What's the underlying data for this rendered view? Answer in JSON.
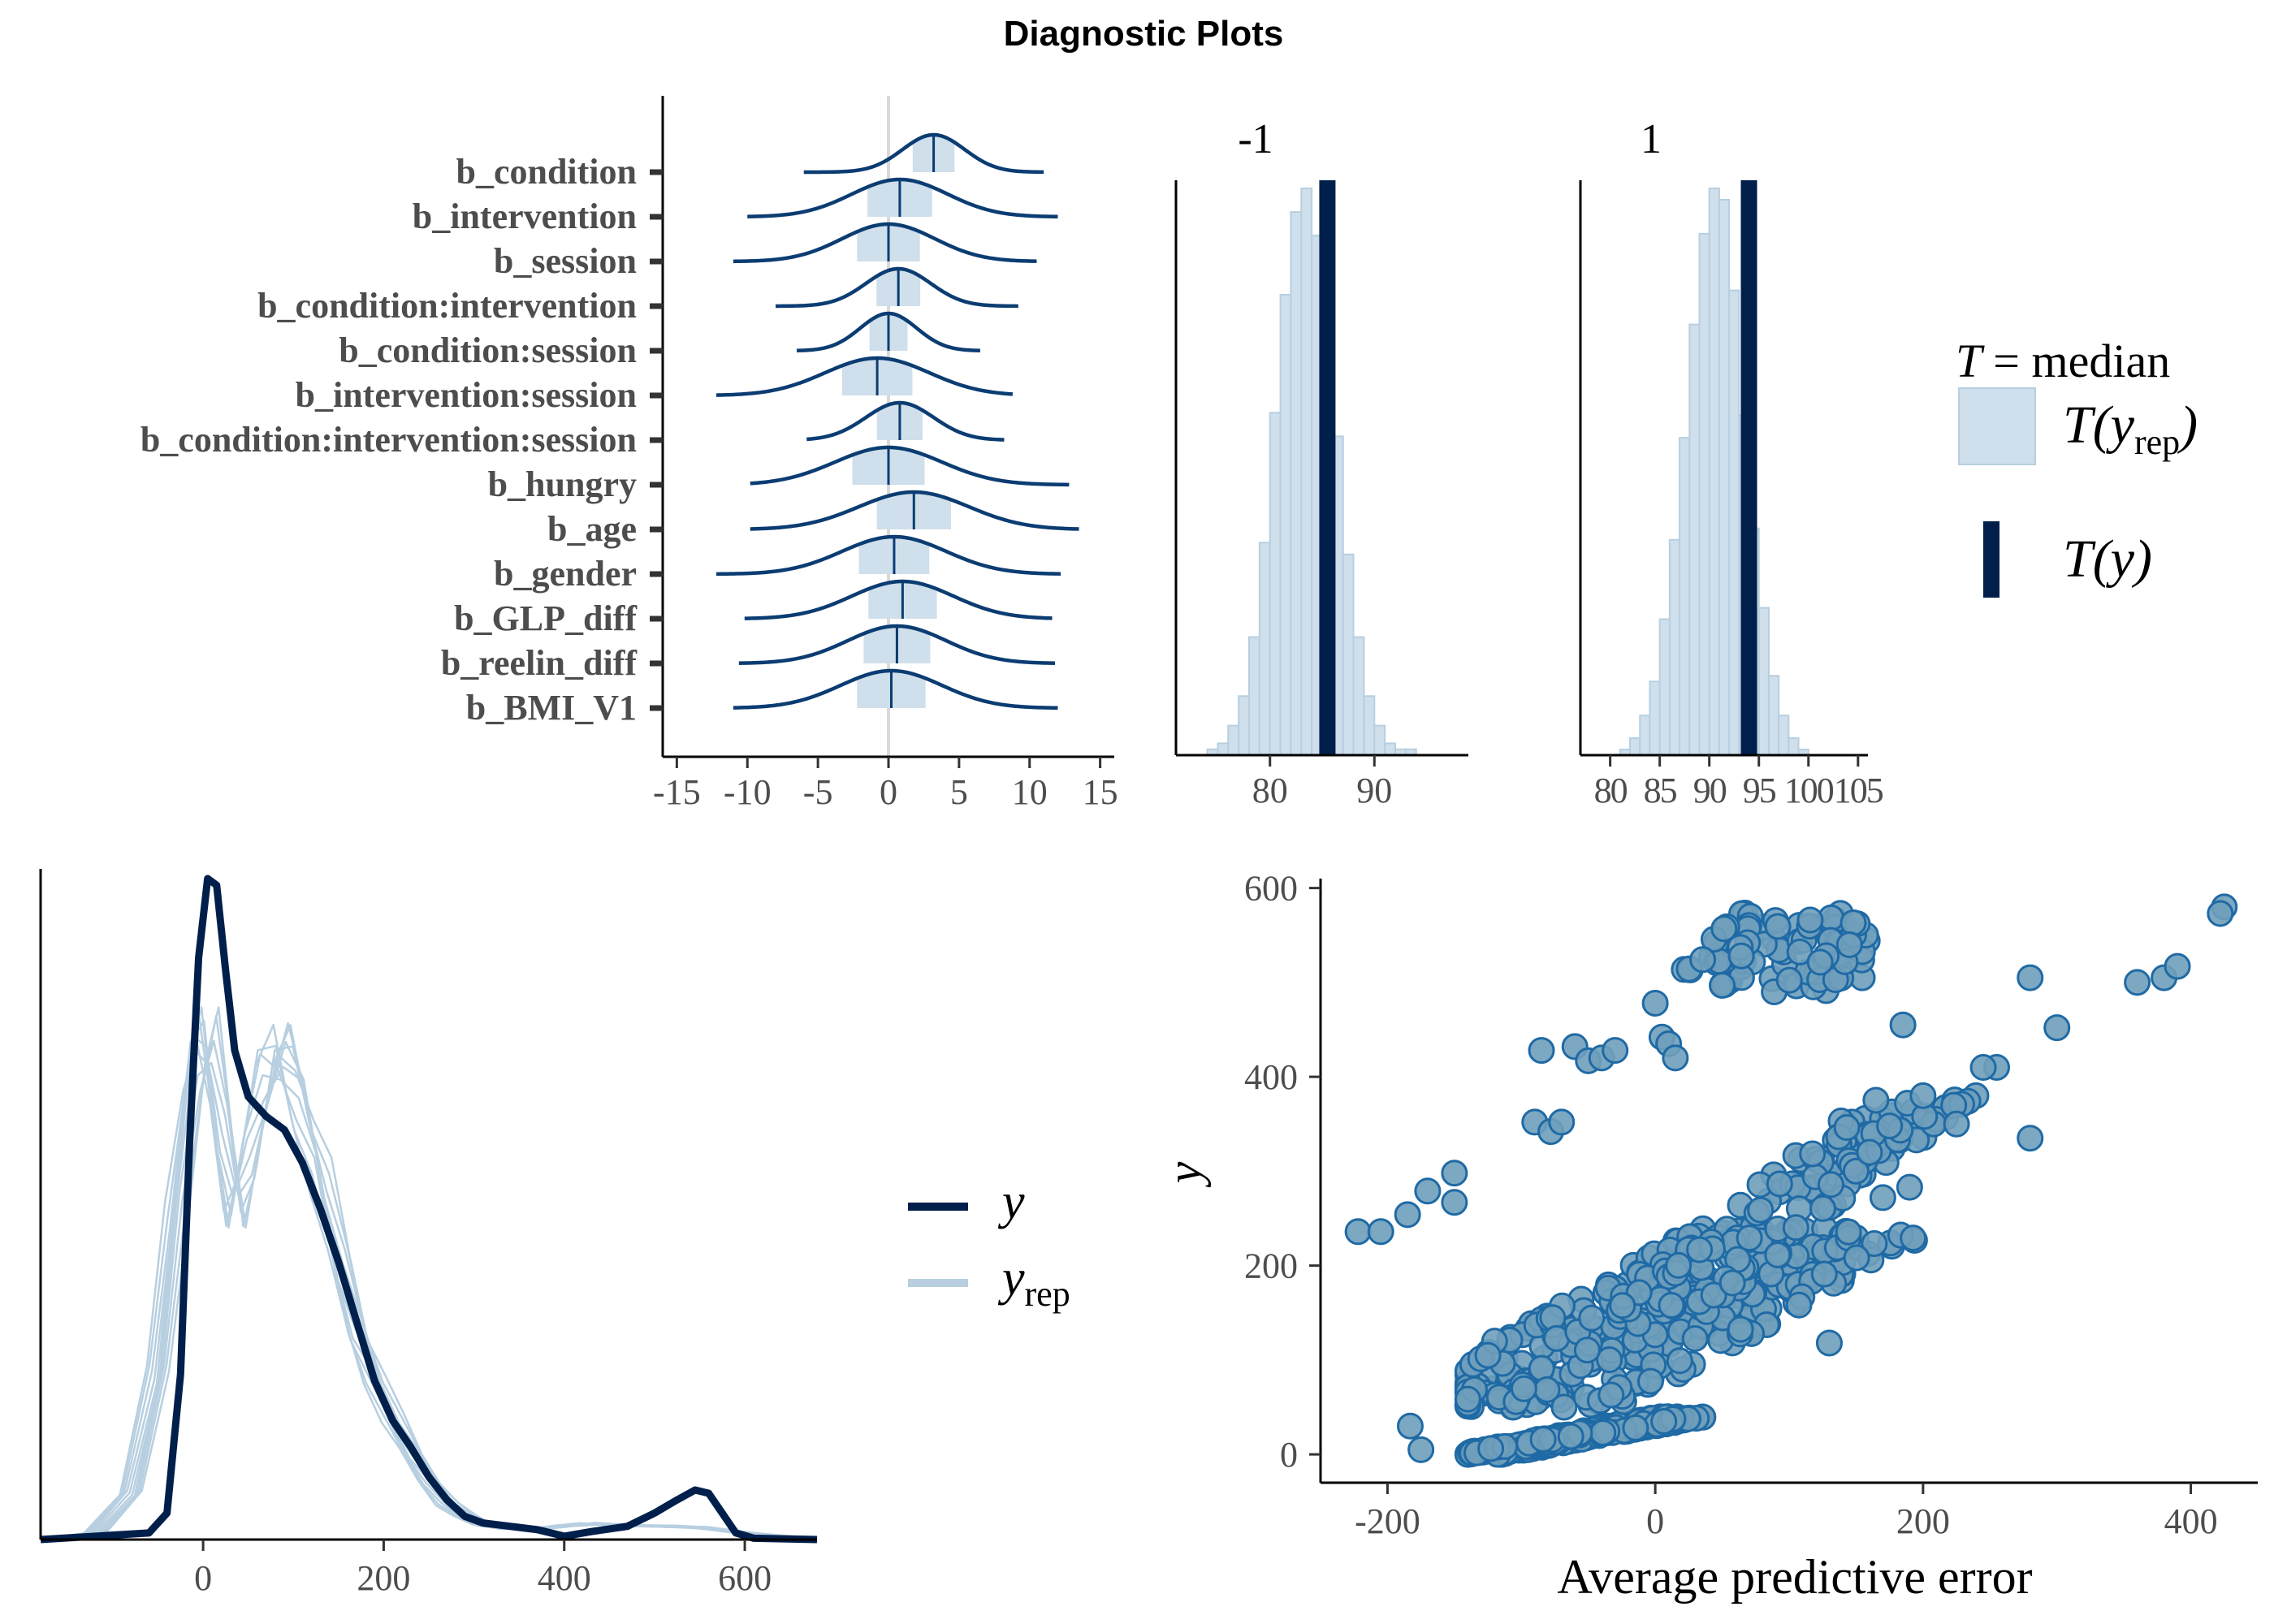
{
  "figure": {
    "title": "Diagnostic Plots"
  },
  "chart_data": [
    {
      "id": "posterior-intervals",
      "type": "ridgeline",
      "xlim": [
        -16,
        16
      ],
      "xticks": [
        -15,
        -10,
        -5,
        0,
        5,
        10,
        15
      ],
      "xtick_labels": [
        "-15",
        "-10",
        "-5",
        "0",
        "5",
        "10",
        "15"
      ],
      "params": [
        {
          "name": "b_condition",
          "mean": 3.2,
          "sd": 2.2,
          "lo": -6.0,
          "hi": 11.0
        },
        {
          "name": "b_intervention",
          "mean": 0.8,
          "sd": 3.4,
          "lo": -10.0,
          "hi": 12.0
        },
        {
          "name": "b_session",
          "mean": 0.0,
          "sd": 3.3,
          "lo": -11.0,
          "hi": 10.5
        },
        {
          "name": "b_condition:intervention",
          "mean": 0.7,
          "sd": 2.3,
          "lo": -8.0,
          "hi": 9.2
        },
        {
          "name": "b_condition:session",
          "mean": 0.0,
          "sd": 2.0,
          "lo": -6.5,
          "hi": 6.5
        },
        {
          "name": "b_intervention:session",
          "mean": -0.8,
          "sd": 3.7,
          "lo": -12.2,
          "hi": 8.8
        },
        {
          "name": "b_condition:intervention:session",
          "mean": 0.8,
          "sd": 2.4,
          "lo": -5.8,
          "hi": 8.2
        },
        {
          "name": "b_hungry",
          "mean": 0.0,
          "sd": 3.8,
          "lo": -9.8,
          "hi": 12.8
        },
        {
          "name": "b_age",
          "mean": 1.8,
          "sd": 3.9,
          "lo": -9.8,
          "hi": 13.5
        },
        {
          "name": "b_gender",
          "mean": 0.4,
          "sd": 3.7,
          "lo": -12.2,
          "hi": 12.2
        },
        {
          "name": "b_GLP_diff",
          "mean": 1.0,
          "sd": 3.6,
          "lo": -10.2,
          "hi": 11.6
        },
        {
          "name": "b_reelin_diff",
          "mean": 0.6,
          "sd": 3.5,
          "lo": -10.6,
          "hi": 11.8
        },
        {
          "name": "b_BMI_V1",
          "mean": 0.2,
          "sd": 3.6,
          "lo": -11.0,
          "hi": 12.0
        }
      ],
      "colors": {
        "line": "#0b3c72",
        "fill": "#cfdfeb",
        "zero": "#d9d9d9"
      }
    },
    {
      "id": "ppc-stat-grouped",
      "type": "histogram",
      "legend": {
        "stat_symbol": "T",
        "stat_text": "= median",
        "yrep_label": "T(y",
        "yrep_sub": "rep",
        "y_label": "T(y)"
      },
      "panels": [
        {
          "facet": "-1",
          "xlim": [
            71,
            99
          ],
          "xticks": [
            80,
            90
          ],
          "xtick_labels": [
            "80",
            "90"
          ],
          "bins_start": 74,
          "bin_width": 1,
          "counts": [
            1,
            2,
            5,
            10,
            20,
            36,
            58,
            78,
            92,
            96,
            88,
            74,
            54,
            34,
            20,
            10,
            5,
            2,
            1,
            1
          ],
          "observed": 85.5
        },
        {
          "facet": "1",
          "xlim": [
            77,
            106
          ],
          "xticks": [
            80,
            85,
            90,
            95,
            100,
            105
          ],
          "xtick_labels": [
            "80",
            "85",
            "90",
            "95",
            "100",
            "105"
          ],
          "bins_start": 81,
          "bin_width": 1,
          "counts": [
            1,
            3,
            7,
            13,
            24,
            38,
            56,
            76,
            92,
            100,
            98,
            82,
            60,
            40,
            26,
            14,
            7,
            3,
            1
          ],
          "observed": 94.0
        }
      ],
      "colors": {
        "bar_fill": "#cfdfeb",
        "bar_stroke": "#b7cfe0",
        "observed": "#011f4b"
      }
    },
    {
      "id": "ppc-density-overlay",
      "type": "line",
      "xlim": [
        -180,
        680
      ],
      "xticks": [
        0,
        200,
        400,
        600
      ],
      "xtick_labels": [
        "0",
        "200",
        "400",
        "600"
      ],
      "y": [
        [
          -200,
          0
        ],
        [
          -60,
          0.01
        ],
        [
          -40,
          0.04
        ],
        [
          -25,
          0.25
        ],
        [
          -15,
          0.6
        ],
        [
          -5,
          0.88
        ],
        [
          5,
          1.0
        ],
        [
          15,
          0.99
        ],
        [
          25,
          0.86
        ],
        [
          35,
          0.74
        ],
        [
          50,
          0.67
        ],
        [
          70,
          0.64
        ],
        [
          90,
          0.62
        ],
        [
          110,
          0.57
        ],
        [
          130,
          0.5
        ],
        [
          150,
          0.42
        ],
        [
          170,
          0.33
        ],
        [
          190,
          0.24
        ],
        [
          210,
          0.18
        ],
        [
          230,
          0.14
        ],
        [
          250,
          0.095
        ],
        [
          270,
          0.06
        ],
        [
          290,
          0.035
        ],
        [
          310,
          0.025
        ],
        [
          340,
          0.02
        ],
        [
          370,
          0.015
        ],
        [
          400,
          0.005
        ],
        [
          430,
          0.012
        ],
        [
          470,
          0.02
        ],
        [
          500,
          0.04
        ],
        [
          525,
          0.06
        ],
        [
          545,
          0.075
        ],
        [
          560,
          0.07
        ],
        [
          575,
          0.04
        ],
        [
          590,
          0.01
        ],
        [
          610,
          0.002
        ],
        [
          680,
          0
        ]
      ],
      "yrep": [
        [
          -200,
          0
        ],
        [
          -120,
          0.01
        ],
        [
          -80,
          0.07
        ],
        [
          -50,
          0.25
        ],
        [
          -30,
          0.5
        ],
        [
          -10,
          0.72
        ],
        [
          5,
          0.76
        ],
        [
          20,
          0.62
        ],
        [
          35,
          0.5
        ],
        [
          50,
          0.58
        ],
        [
          70,
          0.7
        ],
        [
          90,
          0.74
        ],
        [
          110,
          0.66
        ],
        [
          130,
          0.55
        ],
        [
          150,
          0.42
        ],
        [
          170,
          0.32
        ],
        [
          190,
          0.25
        ],
        [
          210,
          0.18
        ],
        [
          230,
          0.13
        ],
        [
          250,
          0.09
        ],
        [
          270,
          0.055
        ],
        [
          290,
          0.035
        ],
        [
          310,
          0.022
        ],
        [
          340,
          0.017
        ],
        [
          370,
          0.016
        ],
        [
          400,
          0.02
        ],
        [
          430,
          0.024
        ],
        [
          470,
          0.022
        ],
        [
          510,
          0.02
        ],
        [
          550,
          0.018
        ],
        [
          590,
          0.012
        ],
        [
          630,
          0.006
        ],
        [
          680,
          0.002
        ]
      ],
      "legend": {
        "y_label": "y",
        "yrep_label": "y",
        "yrep_sub": "rep"
      },
      "colors": {
        "y": "#011f4b",
        "yrep": "#b7cfe0"
      }
    },
    {
      "id": "ppc-error-scatter",
      "type": "scatter",
      "xlim": [
        -250,
        450
      ],
      "ylim": [
        -30,
        610
      ],
      "xticks": [
        -200,
        0,
        200,
        400
      ],
      "xtick_labels": [
        "-200",
        "0",
        "200",
        "400"
      ],
      "yticks": [
        0,
        200,
        400,
        600
      ],
      "ytick_labels": [
        "0",
        "200",
        "400",
        "600"
      ],
      "xlabel": "Average predictive error",
      "ylabel": "y",
      "clusters": [
        {
          "n": 260,
          "x_from": -130,
          "x_to": 20,
          "y_from": 0,
          "y_to": 40,
          "spread": 18
        },
        {
          "n": 340,
          "x_from": -110,
          "x_to": 120,
          "y_from": 50,
          "y_to": 240,
          "slope_x": 1.0,
          "spread": 45
        },
        {
          "n": 150,
          "x_from": 0,
          "x_to": 200,
          "y_from": 150,
          "y_to": 380,
          "spread": 40
        },
        {
          "n": 80,
          "x_from": 20,
          "x_to": 160,
          "y_from": 490,
          "y_to": 575,
          "spread": 0
        }
      ],
      "points": [
        [
          -222,
          236
        ],
        [
          -205,
          236
        ],
        [
          -185,
          254
        ],
        [
          -170,
          279
        ],
        [
          -150,
          298
        ],
        [
          -150,
          267
        ],
        [
          -183,
          30
        ],
        [
          -175,
          5
        ],
        [
          -85,
          428
        ],
        [
          -60,
          432
        ],
        [
          -50,
          417
        ],
        [
          -40,
          420
        ],
        [
          -30,
          428
        ],
        [
          0,
          478
        ],
        [
          5,
          442
        ],
        [
          10,
          435
        ],
        [
          15,
          420
        ],
        [
          -90,
          352
        ],
        [
          -78,
          342
        ],
        [
          -70,
          352
        ],
        [
          255,
          410
        ],
        [
          280,
          335
        ],
        [
          300,
          452
        ],
        [
          280,
          505
        ],
        [
          360,
          500
        ],
        [
          380,
          505
        ],
        [
          390,
          517
        ],
        [
          425,
          580
        ],
        [
          422,
          573
        ],
        [
          200,
          380
        ],
        [
          225,
          350
        ],
        [
          245,
          410
        ],
        [
          150,
          300
        ],
        [
          160,
          320
        ],
        [
          175,
          348
        ],
        [
          185,
          455
        ],
        [
          190,
          283
        ],
        [
          170,
          272
        ],
        [
          130,
          118
        ],
        [
          -120,
          120
        ],
        [
          -125,
          105
        ]
      ],
      "colors": {
        "fill": "#6f9fbb",
        "stroke": "#1f6aa5"
      }
    }
  ]
}
